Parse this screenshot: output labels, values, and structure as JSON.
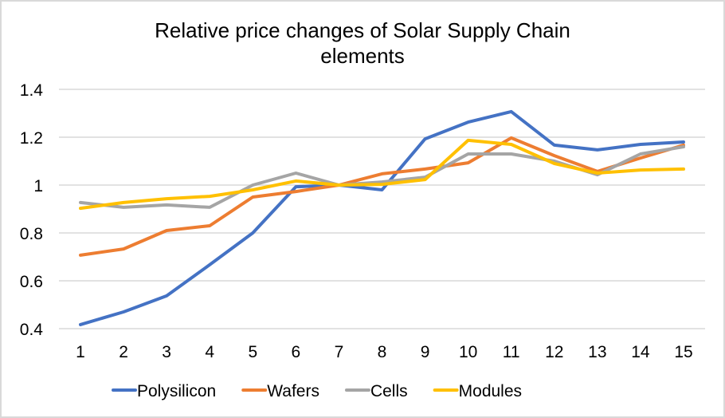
{
  "chart_data": {
    "type": "line",
    "title": [
      "Relative price changes of Solar Supply Chain",
      "elements"
    ],
    "xlabel": "",
    "ylabel": "",
    "x": [
      1,
      2,
      3,
      4,
      5,
      6,
      7,
      8,
      9,
      10,
      11,
      12,
      13,
      14,
      15
    ],
    "x_tick_labels": [
      "1",
      "2",
      "3",
      "4",
      "5",
      "6",
      "7",
      "8",
      "9",
      "10",
      "11",
      "12",
      "13",
      "14",
      "15"
    ],
    "ylim": [
      0.4,
      1.4
    ],
    "y_ticks": [
      0.4,
      0.6,
      0.8,
      1.0,
      1.2,
      1.4
    ],
    "y_tick_labels": [
      "0.4",
      "0.6",
      "0.8",
      "1",
      "1.2",
      "1.4"
    ],
    "grid": "horizontal",
    "legend_position": "bottom",
    "series": [
      {
        "name": "Polysilicon",
        "color": "#4472c4",
        "values": [
          0.417,
          0.47,
          0.537,
          0.667,
          0.8,
          0.993,
          1.0,
          0.98,
          1.193,
          1.263,
          1.307,
          1.167,
          1.147,
          1.17,
          1.18
        ]
      },
      {
        "name": "Wafers",
        "color": "#ed7d31",
        "values": [
          0.707,
          0.733,
          0.81,
          0.83,
          0.95,
          0.973,
          1.0,
          1.047,
          1.067,
          1.093,
          1.197,
          1.123,
          1.057,
          1.113,
          1.167
        ]
      },
      {
        "name": "Cells",
        "color": "#a5a5a5",
        "values": [
          0.927,
          0.907,
          0.917,
          0.907,
          1.0,
          1.05,
          1.0,
          1.013,
          1.033,
          1.13,
          1.13,
          1.1,
          1.043,
          1.13,
          1.16
        ]
      },
      {
        "name": "Modules",
        "color": "#ffc000",
        "values": [
          0.903,
          0.927,
          0.943,
          0.953,
          0.98,
          1.017,
          1.0,
          1.003,
          1.023,
          1.187,
          1.17,
          1.09,
          1.05,
          1.063,
          1.067
        ]
      }
    ]
  }
}
